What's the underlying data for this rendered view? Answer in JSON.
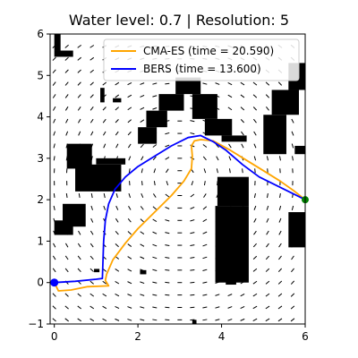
{
  "chart_data": {
    "type": "line",
    "title": "Water level: 0.7 | Resolution: 5",
    "xlabel": "",
    "ylabel": "",
    "xlim": [
      -0.1,
      6.0
    ],
    "ylim": [
      -1.0,
      6.0
    ],
    "x_ticks": [
      0,
      2,
      4,
      6
    ],
    "y_ticks": [
      -1,
      0,
      1,
      2,
      3,
      4,
      5,
      6
    ],
    "legend_position": "top-right",
    "start_point": [
      0,
      0
    ],
    "goal_point": [
      6,
      2
    ],
    "start_color": "#0000ff",
    "goal_color": "#008000",
    "obstacle_color": "#000000",
    "series": [
      {
        "name": "CMA-ES (time = 20.590)",
        "color": "#ffa500",
        "x": [
          0.0,
          0.1,
          0.4,
          0.8,
          1.3,
          1.22,
          1.25,
          1.4,
          1.7,
          2.0,
          2.4,
          2.8,
          3.1,
          3.28,
          3.3,
          3.28,
          3.35,
          3.5,
          3.8,
          4.2,
          4.6,
          5.0,
          5.4,
          5.75,
          6.0
        ],
        "y": [
          0.0,
          -0.2,
          -0.18,
          -0.1,
          -0.08,
          0.05,
          0.2,
          0.55,
          0.95,
          1.3,
          1.7,
          2.1,
          2.45,
          2.75,
          3.05,
          3.3,
          3.42,
          3.45,
          3.42,
          3.2,
          2.95,
          2.7,
          2.45,
          2.2,
          2.0
        ]
      },
      {
        "name": "BERS (time = 13.600)",
        "color": "#0000ff",
        "x": [
          0.0,
          0.5,
          1.0,
          1.15,
          1.18,
          1.22,
          1.3,
          1.45,
          1.7,
          2.0,
          2.4,
          2.8,
          3.2,
          3.5,
          3.8,
          4.1,
          4.5,
          4.9,
          5.3,
          5.7,
          6.0
        ],
        "y": [
          0.0,
          0.03,
          0.08,
          0.1,
          1.0,
          1.5,
          1.9,
          2.25,
          2.55,
          2.8,
          3.05,
          3.3,
          3.5,
          3.55,
          3.4,
          3.2,
          2.85,
          2.55,
          2.35,
          2.15,
          2.0
        ]
      }
    ],
    "obstacles": [
      [
        0.0,
        5.45,
        0.45,
        5.6
      ],
      [
        0.0,
        5.6,
        0.15,
        6.0
      ],
      [
        1.1,
        4.35,
        1.2,
        4.7
      ],
      [
        1.4,
        4.35,
        1.6,
        4.45
      ],
      [
        0.3,
        2.75,
        0.9,
        3.35
      ],
      [
        0.5,
        2.2,
        1.6,
        2.85
      ],
      [
        1.0,
        2.85,
        1.7,
        3.0
      ],
      [
        0.2,
        1.35,
        0.75,
        1.9
      ],
      [
        0.0,
        1.15,
        0.45,
        1.5
      ],
      [
        2.0,
        3.35,
        2.45,
        3.75
      ],
      [
        2.2,
        3.75,
        2.7,
        4.15
      ],
      [
        2.5,
        4.15,
        3.1,
        4.55
      ],
      [
        2.9,
        4.55,
        3.5,
        4.95
      ],
      [
        3.3,
        3.95,
        3.9,
        4.55
      ],
      [
        3.6,
        3.55,
        4.25,
        3.95
      ],
      [
        4.0,
        3.4,
        4.6,
        3.55
      ],
      [
        3.9,
        1.85,
        4.65,
        2.55
      ],
      [
        3.85,
        0.0,
        4.65,
        1.85
      ],
      [
        4.1,
        -0.05,
        4.35,
        0.1
      ],
      [
        5.0,
        3.1,
        5.55,
        4.05
      ],
      [
        5.2,
        4.05,
        5.85,
        4.65
      ],
      [
        5.6,
        4.65,
        6.0,
        5.3
      ],
      [
        5.75,
        3.1,
        6.0,
        3.3
      ],
      [
        5.6,
        0.85,
        6.0,
        1.7
      ],
      [
        2.05,
        0.2,
        2.2,
        0.3
      ],
      [
        0.95,
        0.25,
        1.08,
        0.33
      ],
      [
        3.3,
        -1.0,
        3.4,
        -0.9
      ]
    ]
  }
}
